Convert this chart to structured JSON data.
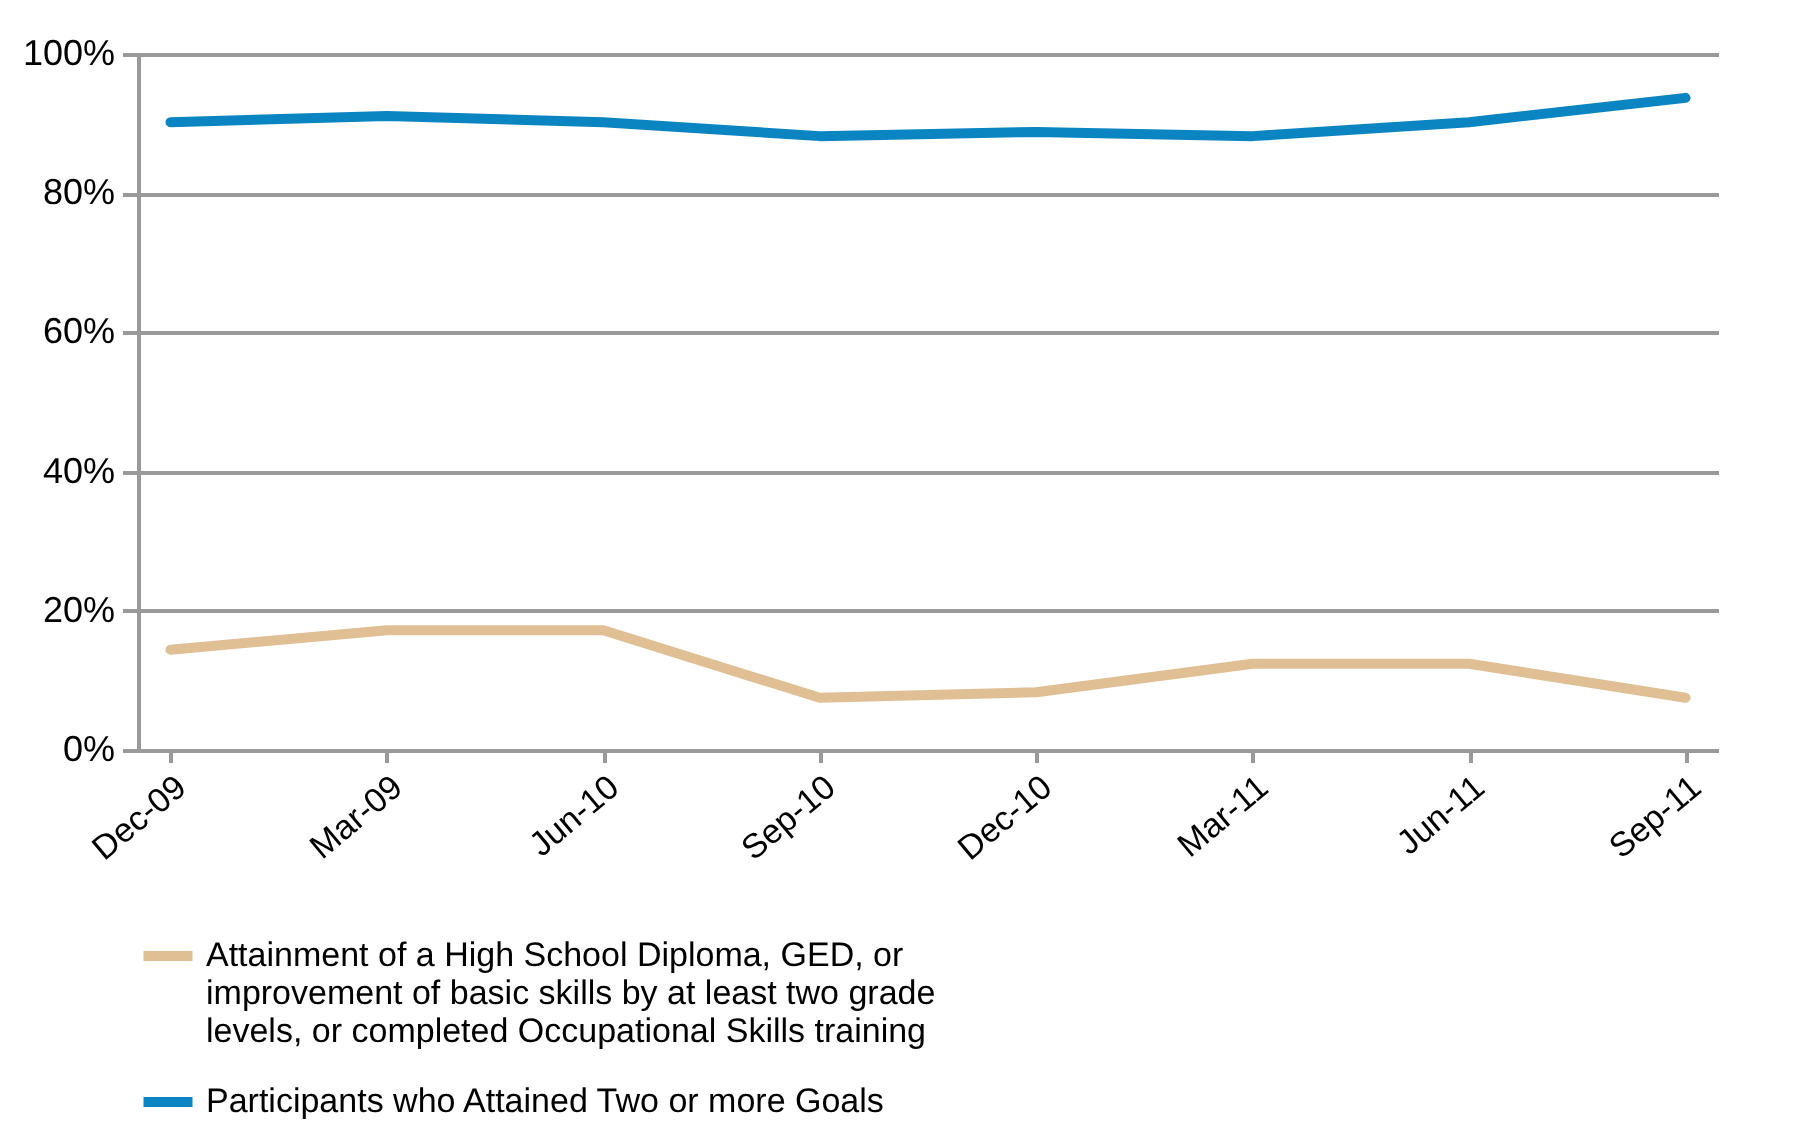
{
  "chart_data": {
    "type": "line",
    "categories": [
      "Dec-09",
      "Mar-09",
      "Jun-10",
      "Sep-10",
      "Dec-10",
      "Mar-11",
      "Jun-11",
      "Sep-11"
    ],
    "series": [
      {
        "name": "Attainment of a High School Diploma, GED, or improvement of basic skills by at least two grade levels, or completed Occupational Skills training",
        "color": "#dfbf93",
        "values": [
          14.4,
          17.2,
          17.2,
          7.5,
          8.3,
          12.4,
          12.4,
          7.5
        ]
      },
      {
        "name": "Participants who Attained Two or more Goals",
        "color": "#0a85c2",
        "values": [
          90.2,
          91.1,
          90.2,
          88.2,
          88.8,
          88.2,
          90.2,
          93.7
        ]
      }
    ],
    "ylim": [
      0,
      100
    ],
    "yticks": [
      {
        "value": 0,
        "label": "0%"
      },
      {
        "value": 20,
        "label": "20%"
      },
      {
        "value": 40,
        "label": "40%"
      },
      {
        "value": 60,
        "label": "60%"
      },
      {
        "value": 80,
        "label": "80%"
      },
      {
        "value": 100,
        "label": "100%"
      }
    ],
    "grid": "y",
    "legend": "bottom",
    "marker": "none",
    "line_style": "solid"
  }
}
